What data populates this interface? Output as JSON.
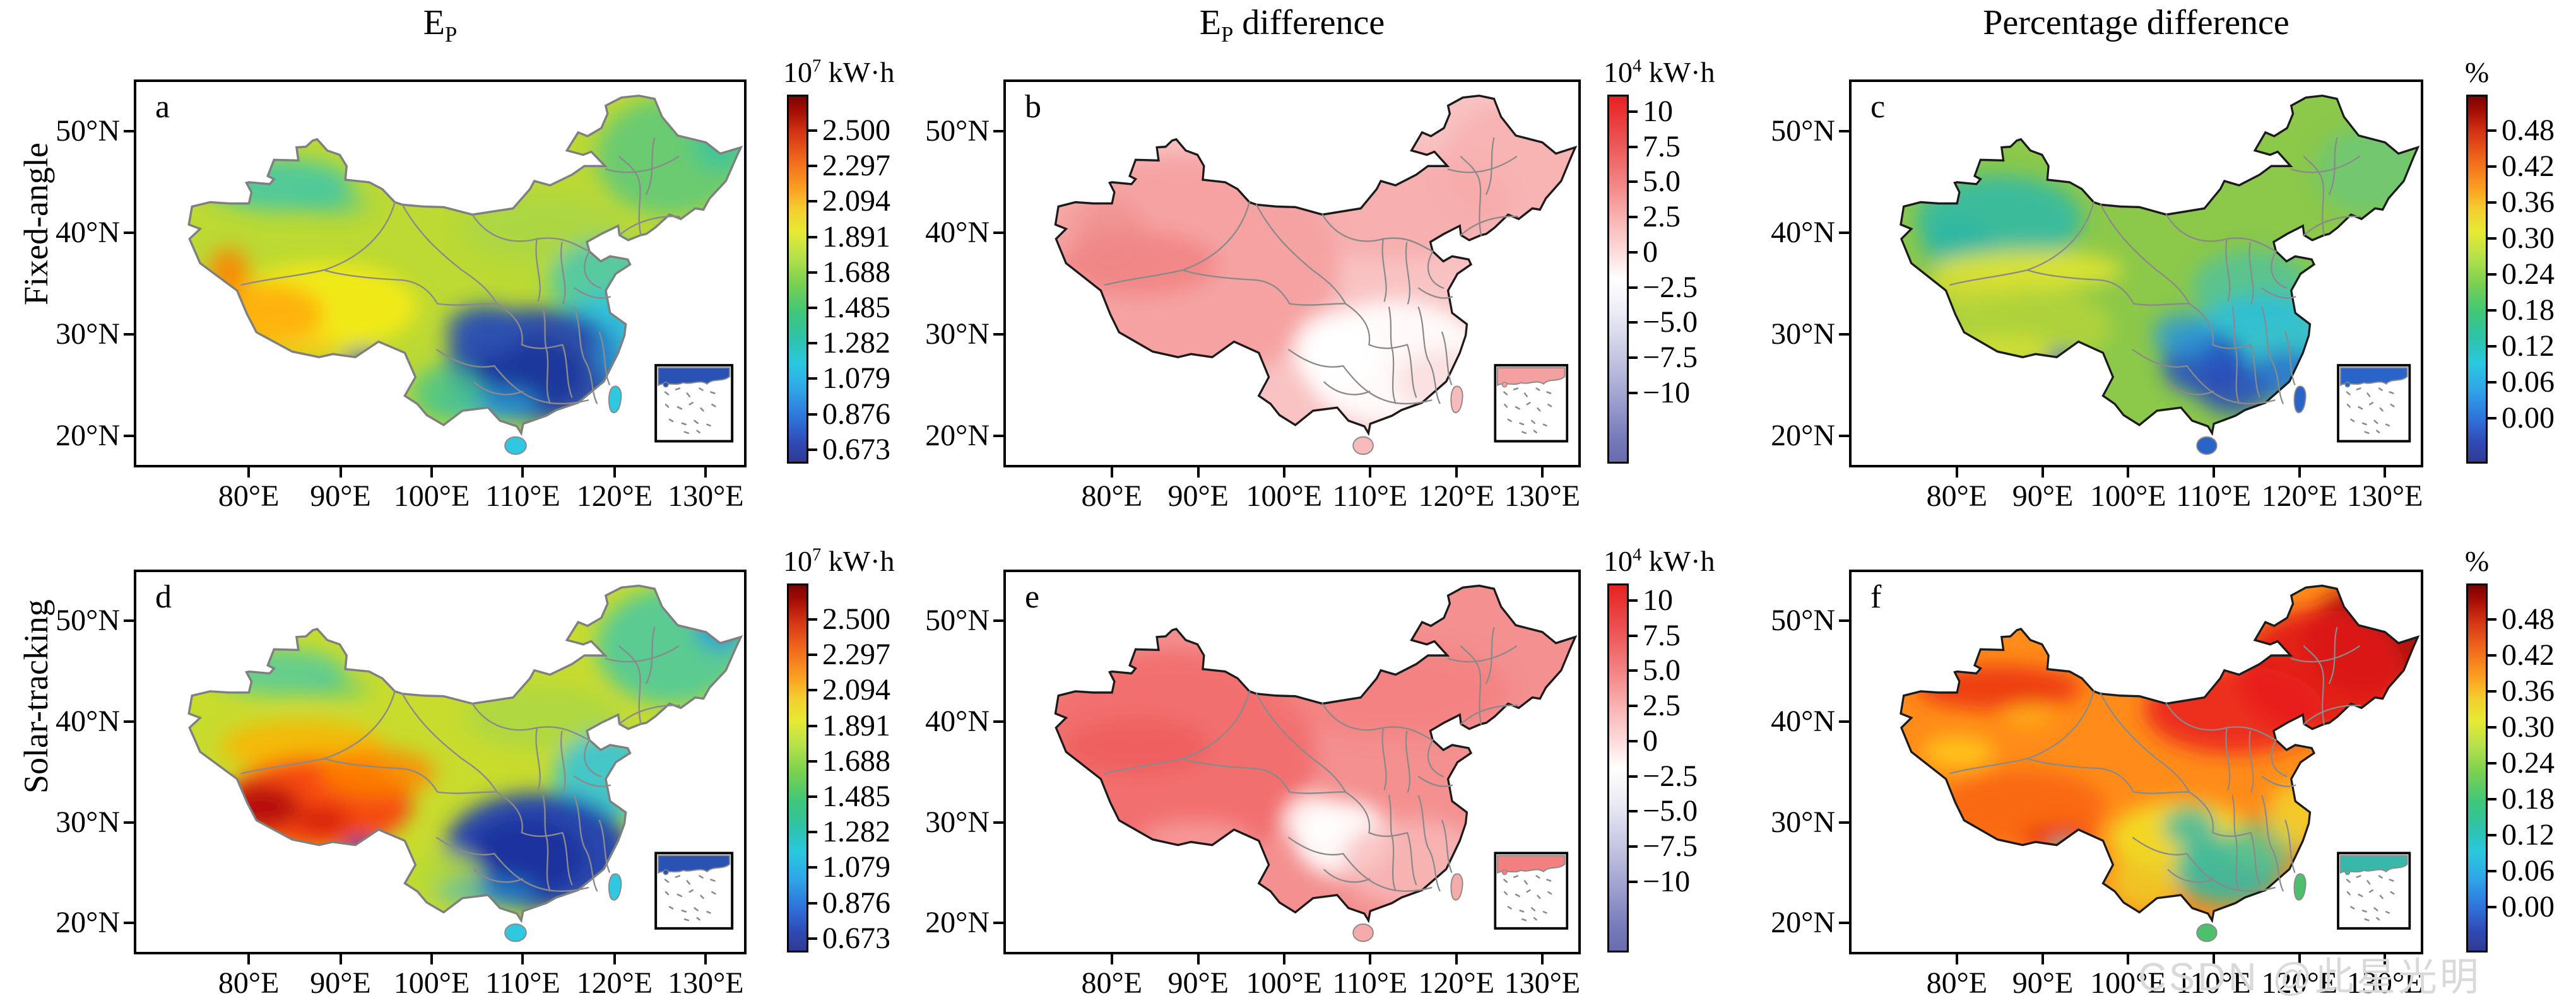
{
  "figure": {
    "column_titles": [
      {
        "pre": "E",
        "sub": "P",
        "post": ""
      },
      {
        "pre": "E",
        "sub": "P",
        "post": "  difference"
      },
      {
        "pre": "Percentage  difference",
        "sub": "",
        "post": ""
      }
    ],
    "row_labels": [
      "Fixed-angle",
      "Solar-tracking"
    ],
    "panels": [
      {
        "letter": "a",
        "row": "Fixed-angle",
        "column": "EP"
      },
      {
        "letter": "b",
        "row": "Fixed-angle",
        "column": "EP difference"
      },
      {
        "letter": "c",
        "row": "Fixed-angle",
        "column": "Percentage difference"
      },
      {
        "letter": "d",
        "row": "Solar-tracking",
        "column": "EP"
      },
      {
        "letter": "e",
        "row": "Solar-tracking",
        "column": "EP difference"
      },
      {
        "letter": "f",
        "row": "Solar-tracking",
        "column": "Percentage difference"
      }
    ],
    "watermark": {
      "text": "CSDN @此星光明",
      "color": "#d9d9d9"
    }
  },
  "axes": {
    "x_ticks": [
      "80°E",
      "90°E",
      "100°E",
      "110°E",
      "120°E",
      "130°E"
    ],
    "y_ticks": [
      "50°N",
      "40°N",
      "30°N",
      "20°N"
    ]
  },
  "colorbars": {
    "ep": {
      "unit_base": "10",
      "unit_exp": "7",
      "unit_suffix": " kW·h",
      "ticks": [
        "2.500",
        "2.297",
        "2.094",
        "1.891",
        "1.688",
        "1.485",
        "1.282",
        "1.079",
        "0.876",
        "0.673"
      ]
    },
    "diff": {
      "unit_base": "10",
      "unit_exp": "4",
      "unit_suffix": " kW·h",
      "ticks": [
        "10",
        "7.5",
        "5.0",
        "2.5",
        "0",
        "−2.5",
        "−5.0",
        "−7.5",
        "−10"
      ]
    },
    "pct": {
      "unit_base": "%",
      "unit_exp": "",
      "unit_suffix": "",
      "ticks": [
        "0.48",
        "0.42",
        "0.36",
        "0.30",
        "0.24",
        "0.18",
        "0.12",
        "0.06",
        "0.00"
      ]
    }
  },
  "colors": {
    "jet_scale": [
      "#7a0403",
      "#d63515",
      "#fb9e20",
      "#e6ea33",
      "#7bd14f",
      "#2ec3a8",
      "#29c8df",
      "#2f74dc",
      "#2f3b92"
    ],
    "red_white_blue_scale": [
      "#e62222",
      "#f9b6b6",
      "#ffffff",
      "#c6c7e3",
      "#686caf"
    ],
    "province_border": "#8a8a8a",
    "coastline_dark": "#1b1b1b",
    "coastline_gray": "#7f7f7f"
  },
  "chart_data": [
    {
      "type": "heatmap",
      "panel": "a",
      "row": "Fixed-angle",
      "quantity": "EP",
      "units": "10^7 kW·h",
      "region": "China",
      "x_range": [
        "80°E",
        "130°E"
      ],
      "y_range": [
        "20°N",
        "50°N"
      ],
      "colorbar_ticks": [
        2.5,
        2.297,
        2.094,
        1.891,
        1.688,
        1.485,
        1.282,
        1.079,
        0.876,
        0.673
      ],
      "pattern": "Tibet yellow-orange (high ~2.0-2.3), west-edge orange hotspot, Xinjiang yellow-green with teal patches, northeast green-teal, southeast and Sichuan basin dark blue (low ~0.7-0.9), Hainan cyan"
    },
    {
      "type": "heatmap",
      "panel": "b",
      "row": "Fixed-angle",
      "quantity": "EP difference",
      "units": "10^4 kW·h",
      "region": "China",
      "x_range": [
        "80°E",
        "130°E"
      ],
      "y_range": [
        "20°N",
        "50°N"
      ],
      "colorbar_ticks": [
        10,
        7.5,
        5.0,
        2.5,
        0,
        -2.5,
        -5.0,
        -7.5,
        -10
      ],
      "pattern": "entire country light pink to pink (positive ~1-5), deeper pink in west/northwest, near-white (≈0) over southeast and Sichuan-Guizhou area"
    },
    {
      "type": "heatmap",
      "panel": "c",
      "row": "Fixed-angle",
      "quantity": "Percentage difference",
      "units": "%",
      "region": "China",
      "x_range": [
        "80°E",
        "130°E"
      ],
      "y_range": [
        "20°N",
        "50°N"
      ],
      "colorbar_ticks": [
        0.48,
        0.42,
        0.36,
        0.3,
        0.24,
        0.18,
        0.12,
        0.06,
        0.0
      ],
      "pattern": "north and northeast green (~0.3), Xinjiang teal, yellow band south Xinjiang to Tibet (~0.36), southeast cyan to dark blue (~0.0-0.12) over Guizhou/Hunan/Guangxi, Hainan blue"
    },
    {
      "type": "heatmap",
      "panel": "d",
      "row": "Solar-tracking",
      "quantity": "EP",
      "units": "10^7 kW·h",
      "region": "China",
      "x_range": [
        "80°E",
        "130°E"
      ],
      "y_range": [
        "20°N",
        "50°N"
      ],
      "colorbar_ticks": [
        2.5,
        2.297,
        2.094,
        1.891,
        1.688,
        1.485,
        1.282,
        1.079,
        0.876,
        0.673
      ],
      "pattern": "Tibet red with dark-red spots (≥2.5), south Xinjiang orange, north Xinjiang yellow with teal patches, northeast teal-cyan with blue far-NE spot, southeast dark blue, Yunnan yellow-green"
    },
    {
      "type": "heatmap",
      "panel": "e",
      "row": "Solar-tracking",
      "quantity": "EP difference",
      "units": "10^4 kW·h",
      "region": "China",
      "x_range": [
        "80°E",
        "130°E"
      ],
      "y_range": [
        "20°N",
        "50°N"
      ],
      "colorbar_ticks": [
        10,
        7.5,
        5.0,
        2.5,
        0,
        -2.5,
        -5.0,
        -7.5,
        -10
      ],
      "pattern": "stronger pink-red everywhere (positive ~2.5-7.5), deepest in west and north, white patch (≈0) over Sichuan-Guizhou, lighter pink southeast coast"
    },
    {
      "type": "heatmap",
      "panel": "f",
      "row": "Solar-tracking",
      "quantity": "Percentage difference",
      "units": "%",
      "region": "China",
      "x_range": [
        "80°E",
        "130°E"
      ],
      "y_range": [
        "20°N",
        "50°N"
      ],
      "colorbar_ticks": [
        0.48,
        0.42,
        0.36,
        0.3,
        0.24,
        0.18,
        0.12,
        0.06,
        0.0
      ],
      "pattern": "northeast dark red (≥0.48), north China red, Xinjiang/Tibet orange (~0.4), south yellow (~0.33), Guizhou-Guangdong teal (~0.2), Sichuan basin teal-cyan"
    }
  ]
}
